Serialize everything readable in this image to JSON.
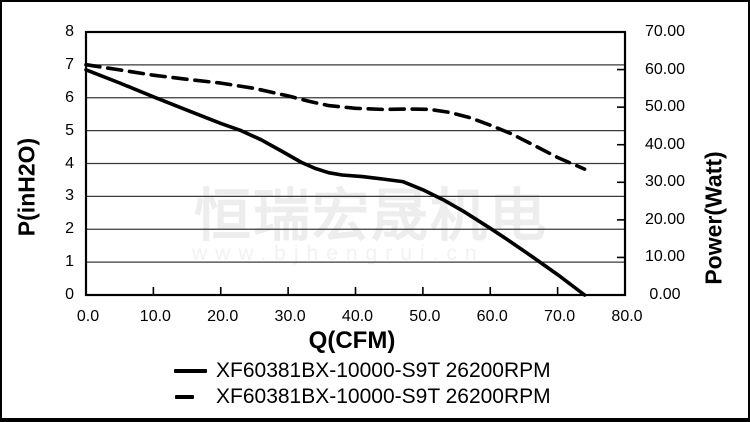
{
  "watermark": {
    "line1": "恒瑞宏晟机电",
    "line2": "www.bjhengrui.cn"
  },
  "axes": {
    "left_title": "P(inH2O)",
    "right_title": "Power(Watt)",
    "x_title": "Q(CFM)"
  },
  "legend": [
    {
      "label": "XF60381BX-10000-S9T 26200RPM",
      "style": "solid"
    },
    {
      "label": "XF60381BX-10000-S9T 26200RPM",
      "style": "dashed"
    }
  ],
  "chart_data": {
    "type": "line",
    "title": "",
    "grid": "horizontal",
    "legend_position": "bottom",
    "x_axis": {
      "label": "Q(CFM)",
      "min": 0,
      "max": 80,
      "ticks": [
        "0.0",
        "10.0",
        "20.0",
        "30.0",
        "40.0",
        "50.0",
        "60.0",
        "70.0",
        "80.0"
      ]
    },
    "y_left": {
      "label": "P(inH2O)",
      "min": 0,
      "max": 8,
      "ticks": [
        "8",
        "7",
        "6",
        "5",
        "4",
        "3",
        "2",
        "1",
        "0"
      ]
    },
    "y_right": {
      "label": "Power(Watt)",
      "min": 0,
      "max": 70,
      "ticks": [
        "70.00",
        "60.00",
        "50.00",
        "40.00",
        "30.00",
        "20.00",
        "10.00",
        "0.00"
      ]
    },
    "colors": {
      "line": "#000000",
      "grid": "#3a3a3a",
      "frame": "#000000"
    },
    "series": [
      {
        "name": "XF60381BX-10000-S9T 26200RPM",
        "axis": "left",
        "line": "solid",
        "points": [
          [
            0,
            6.85
          ],
          [
            5,
            6.45
          ],
          [
            10,
            6.03
          ],
          [
            15,
            5.62
          ],
          [
            20,
            5.22
          ],
          [
            23,
            5.0
          ],
          [
            26,
            4.72
          ],
          [
            29,
            4.38
          ],
          [
            32,
            4.03
          ],
          [
            34,
            3.85
          ],
          [
            36,
            3.72
          ],
          [
            38,
            3.65
          ],
          [
            41,
            3.6
          ],
          [
            44,
            3.53
          ],
          [
            47,
            3.45
          ],
          [
            50,
            3.2
          ],
          [
            53,
            2.9
          ],
          [
            56,
            2.55
          ],
          [
            60,
            2.03
          ],
          [
            63,
            1.62
          ],
          [
            66,
            1.2
          ],
          [
            70,
            0.62
          ],
          [
            74,
            0
          ]
        ]
      },
      {
        "name": "XF60381BX-10000-S9T 26200RPM",
        "axis": "right",
        "line": "dashed",
        "points": [
          [
            0,
            61.3
          ],
          [
            5,
            59.9
          ],
          [
            10,
            58.5
          ],
          [
            15,
            57.4
          ],
          [
            20,
            56.4
          ],
          [
            25,
            55.0
          ],
          [
            30,
            53.0
          ],
          [
            33,
            51.6
          ],
          [
            36,
            50.4
          ],
          [
            40,
            49.7
          ],
          [
            44,
            49.4
          ],
          [
            48,
            49.5
          ],
          [
            51,
            49.4
          ],
          [
            54,
            48.6
          ],
          [
            57,
            47.2
          ],
          [
            60,
            45.2
          ],
          [
            63,
            43.0
          ],
          [
            66,
            40.3
          ],
          [
            70,
            36.6
          ],
          [
            74,
            33.5
          ]
        ]
      }
    ]
  }
}
